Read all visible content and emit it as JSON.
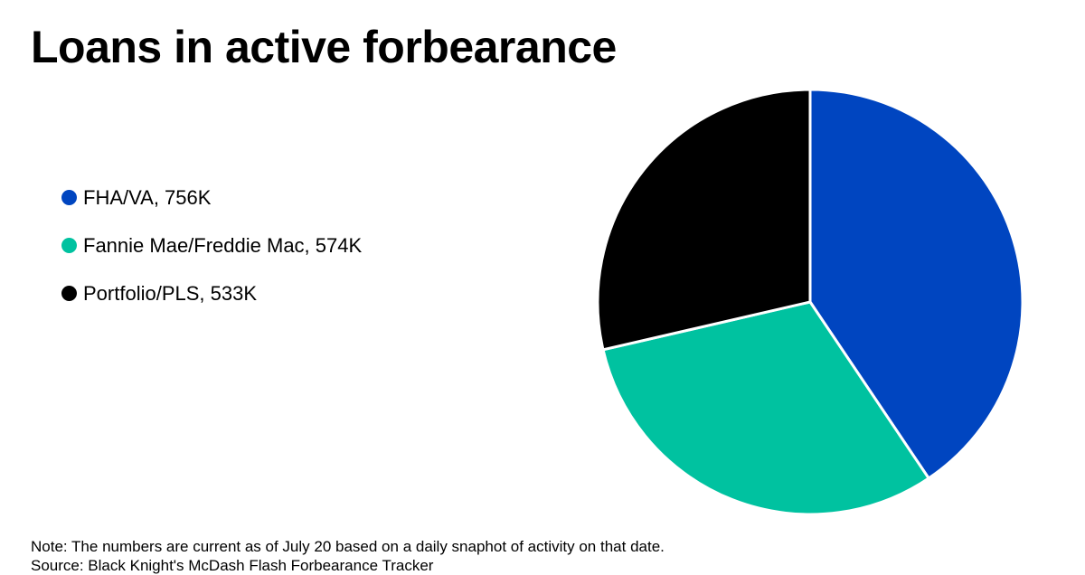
{
  "chart_data": {
    "type": "pie",
    "title": "Loans in active forbearance",
    "slices": [
      {
        "label": "FHA/VA, 756K",
        "value": 756,
        "color": "#0045C0"
      },
      {
        "label": "Fannie Mae/Freddie Mac, 574K",
        "value": 574,
        "color": "#00C2A0"
      },
      {
        "label": "Portfolio/PLS, 533K",
        "value": 533,
        "color": "#000000"
      }
    ],
    "legend_position": "left",
    "slice_border_color": "#ffffff"
  },
  "footer": {
    "note": "Note: The numbers are current as of July 20 based on a daily snaphot of activity on that date.",
    "source": "Source: Black Knight's McDash Flash Forbearance Tracker"
  }
}
